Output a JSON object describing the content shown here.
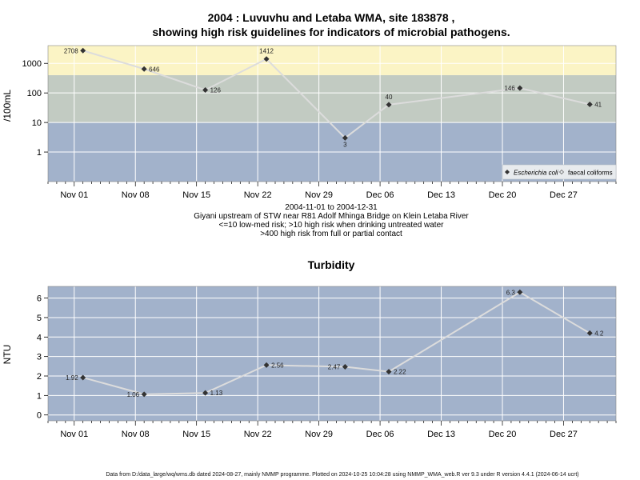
{
  "chart_data": [
    {
      "type": "line",
      "title": "2004 : Luvuvhu and Letaba WMA, site 183878 ,",
      "subtitle": "showing high risk guidelines for indicators of microbial pathogens.",
      "ylabel": "/100mL",
      "y_scale": "log",
      "ylim": [
        0.1,
        4000
      ],
      "y_ticks": [
        1,
        10,
        100,
        1000
      ],
      "y_tick_labels": [
        "1",
        "10",
        "100",
        "1000"
      ],
      "x_ticks": [
        "Nov 01",
        "Nov 08",
        "Nov 15",
        "Nov 22",
        "Nov 29",
        "Dec 06",
        "Dec 13",
        "Dec 20",
        "Dec 27"
      ],
      "bands": [
        {
          "from": 0.1,
          "to": 10,
          "color": "#a2b2cb"
        },
        {
          "from": 10,
          "to": 400,
          "color": "#c2cbc2"
        },
        {
          "from": 400,
          "to": 4000,
          "color": "#fbf4c5"
        }
      ],
      "grid": true,
      "legend": {
        "position": "bottom-right",
        "items": [
          "Escherichia coli",
          "faecal coliforms"
        ]
      },
      "series": [
        {
          "name": "Escherichia coli",
          "x": [
            "2004-11-02",
            "2004-11-09",
            "2004-11-16",
            "2004-11-23",
            "2004-12-02",
            "2004-12-07",
            "2004-12-22",
            "2004-12-30"
          ],
          "values": [
            2708,
            646,
            126,
            1412,
            3,
            40,
            146,
            41
          ],
          "labels": [
            "2708",
            "646",
            "126",
            "1412",
            "3",
            "40",
            "146",
            "41"
          ]
        }
      ],
      "notes": [
        "2004-11-01 to 2004-12-31",
        "Giyani upstream of STW near R81 Adolf Mhinga Bridge on Klein Letaba River",
        "<=10 low-med risk; >10 high risk when drinking untreated water",
        ">400 high risk from full or partial contact"
      ]
    },
    {
      "type": "line",
      "title": "Turbidity",
      "ylabel": "NTU",
      "ylim": [
        -0.3,
        6.6
      ],
      "y_ticks": [
        0,
        1,
        2,
        3,
        4,
        5,
        6
      ],
      "y_tick_labels": [
        "0",
        "1",
        "2",
        "3",
        "4",
        "5",
        "6"
      ],
      "x_ticks": [
        "Nov 01",
        "Nov 08",
        "Nov 15",
        "Nov 22",
        "Nov 29",
        "Dec 06",
        "Dec 13",
        "Dec 20",
        "Dec 27"
      ],
      "background": "#a2b2cb",
      "grid": true,
      "series": [
        {
          "x": [
            "2004-11-02",
            "2004-11-09",
            "2004-11-16",
            "2004-11-23",
            "2004-12-02",
            "2004-12-07",
            "2004-12-22",
            "2004-12-30"
          ],
          "values": [
            1.92,
            1.06,
            1.13,
            2.56,
            2.47,
            2.22,
            6.3,
            4.2
          ],
          "labels": [
            "1.92",
            "1.06",
            "1.13",
            "2.56",
            "2.47",
            "2.22",
            "6.3",
            "4.2"
          ]
        }
      ]
    }
  ],
  "footer": "Data from D:/data_large/wq/wms.db dated 2024-08-27, mainly NMMP programme. Plotted on 2024-10-25 10:04:28 using NMMP_WMA_web.R ver 9.3 under R version 4.4.1 (2024-06-14 ucrt)"
}
